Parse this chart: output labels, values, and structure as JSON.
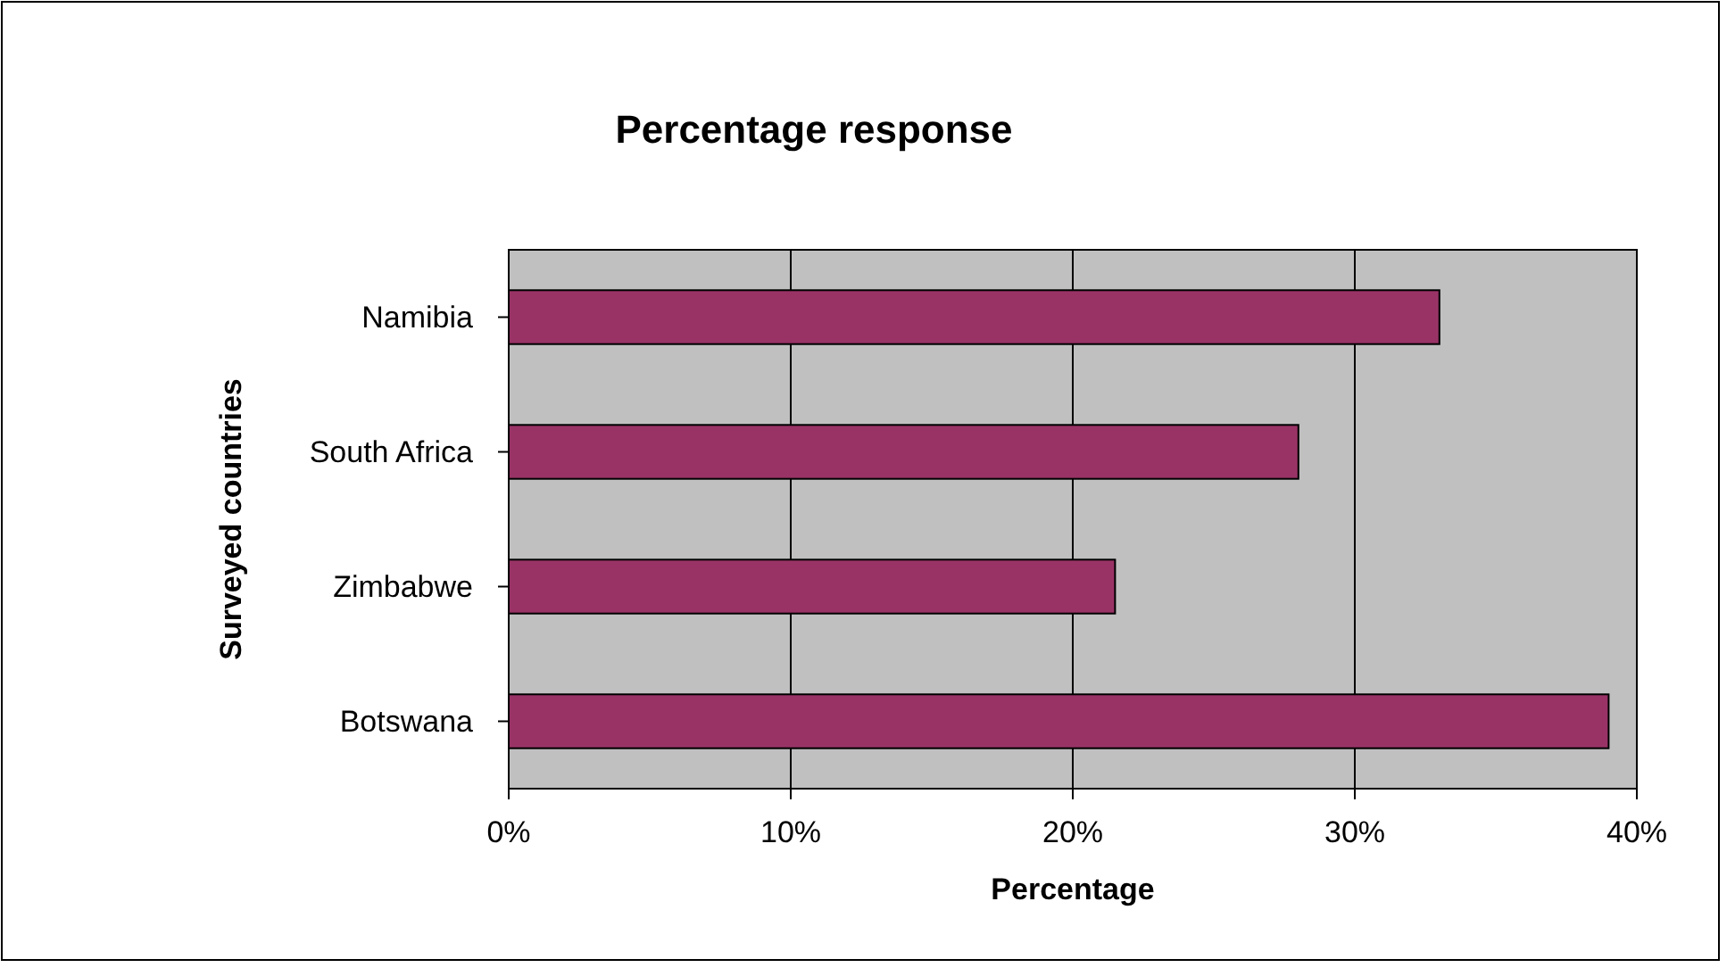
{
  "chart_data": {
    "type": "bar",
    "orientation": "horizontal",
    "title": "Percentage response",
    "xlabel": "Percentage",
    "ylabel": "Surveyed countries",
    "categories": [
      "Namibia",
      "South Africa",
      "Zimbabwe",
      "Botswana"
    ],
    "values": [
      33,
      28,
      21.5,
      39
    ],
    "color": "#993366",
    "xlim": [
      0,
      40
    ],
    "xticks": [
      {
        "value": 0,
        "label": "0%"
      },
      {
        "value": 10,
        "label": "10%"
      },
      {
        "value": 20,
        "label": "20%"
      },
      {
        "value": 30,
        "label": "30%"
      },
      {
        "value": 40,
        "label": "40%"
      }
    ],
    "grid": "x"
  }
}
